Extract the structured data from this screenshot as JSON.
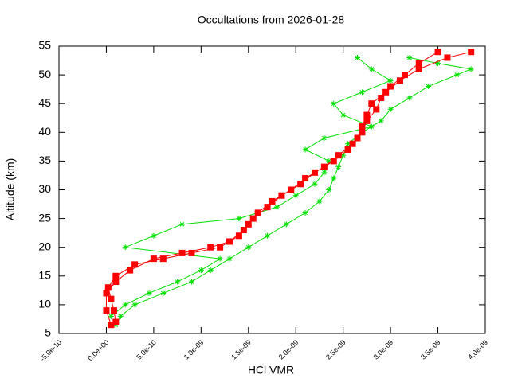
{
  "chart_data": {
    "type": "line",
    "title": "Occultations from 2026-01-28",
    "x_label": "HCl VMR",
    "y_label": "Altitude (km)",
    "xlim": [
      -5e-10,
      4e-09
    ],
    "ylim": [
      5,
      55
    ],
    "xticks": [
      {
        "value": -5e-10,
        "label": "-5.0e-10"
      },
      {
        "value": 0,
        "label": "0.0e+00"
      },
      {
        "value": 5e-10,
        "label": "5.0e-10"
      },
      {
        "value": 1e-09,
        "label": "1.0e-09"
      },
      {
        "value": 1.5e-09,
        "label": "1.5e-09"
      },
      {
        "value": 2e-09,
        "label": "2.0e-09"
      },
      {
        "value": 2.5e-09,
        "label": "2.5e-09"
      },
      {
        "value": 3e-09,
        "label": "3.0e-09"
      },
      {
        "value": 3.5e-09,
        "label": "3.5e-09"
      },
      {
        "value": 4e-09,
        "label": "4.0e-09"
      }
    ],
    "yticks": [
      5,
      10,
      15,
      20,
      25,
      30,
      35,
      40,
      45,
      50,
      55
    ],
    "series": [
      {
        "color": "#00e000",
        "marker": "star",
        "x": [
          1e-10,
          1.5e-10,
          3e-10,
          6e-10,
          9e-10,
          1.1e-09,
          1.3e-09,
          1.5e-09,
          1.7e-09,
          1.9e-09,
          2.1e-09,
          2.25e-09,
          2.35e-09,
          2.4e-09,
          2.45e-09,
          2.5e-09,
          2.55e-09,
          2.7e-09,
          2.9e-09,
          3e-09,
          3.2e-09,
          3.4e-09,
          3.7e-09,
          3.85e-09,
          3.5e-09,
          3.2e-09
        ],
        "values": [
          6.5,
          8,
          10,
          12,
          14,
          16,
          18,
          20,
          22,
          24,
          26,
          28,
          30,
          32,
          34,
          36,
          38,
          40,
          42,
          44,
          46,
          48,
          50,
          51,
          52,
          53
        ]
      },
      {
        "color": "#00e000",
        "marker": "star",
        "x": [
          5e-11,
          2e-10,
          4.5e-10,
          7.5e-10,
          1e-09,
          1.2e-09,
          2e-10,
          5e-10,
          8e-10,
          1.4e-09,
          1.8e-09,
          2e-09,
          2.2e-09,
          2.3e-09,
          2.35e-09,
          2.1e-09,
          2.3e-09,
          2.8e-09,
          2.5e-09,
          2.4e-09,
          2.7e-09,
          3e-09,
          2.8e-09,
          2.65e-09
        ],
        "values": [
          8,
          10,
          12,
          14,
          16,
          18,
          20,
          22,
          24,
          25,
          27,
          29,
          31,
          33,
          35,
          37,
          39,
          41,
          43,
          45,
          47,
          49,
          51,
          53
        ]
      },
      {
        "color": "#ff0000",
        "marker": "square",
        "x": [
          1e-10,
          8e-11,
          5e-11,
          2e-11,
          1e-10,
          3e-10,
          6e-10,
          9e-10,
          1.2e-09,
          1.4e-09,
          1.5e-09,
          1.6e-09,
          1.75e-09,
          1.95e-09,
          2.1e-09,
          2.3e-09,
          2.45e-09,
          2.6e-09,
          2.7e-09,
          2.75e-09,
          2.85e-09,
          2.9e-09,
          3e-09,
          3.15e-09,
          3.3e-09,
          3.5e-09
        ],
        "values": [
          7,
          9,
          11,
          13,
          15,
          17,
          18,
          19,
          20,
          22,
          24,
          26,
          28,
          30,
          32,
          34,
          36,
          38,
          40,
          42,
          44,
          46,
          48,
          50,
          52,
          54
        ]
      },
      {
        "color": "#ff0000",
        "marker": "square",
        "x": [
          5e-11,
          0,
          0,
          1e-10,
          2.5e-10,
          5e-10,
          8e-10,
          1.1e-09,
          1.3e-09,
          1.45e-09,
          1.55e-09,
          1.7e-09,
          1.85e-09,
          2.05e-09,
          2.2e-09,
          2.4e-09,
          2.55e-09,
          2.65e-09,
          2.7e-09,
          2.75e-09,
          2.8e-09,
          2.95e-09,
          3.1e-09,
          3.3e-09,
          3.6e-09,
          3.85e-09
        ],
        "values": [
          6.5,
          9,
          12,
          14,
          16,
          18,
          19,
          20,
          21,
          23,
          25,
          27,
          29,
          31,
          33,
          35,
          37,
          39,
          41,
          43,
          45,
          47,
          49,
          51,
          53,
          54
        ]
      }
    ]
  }
}
